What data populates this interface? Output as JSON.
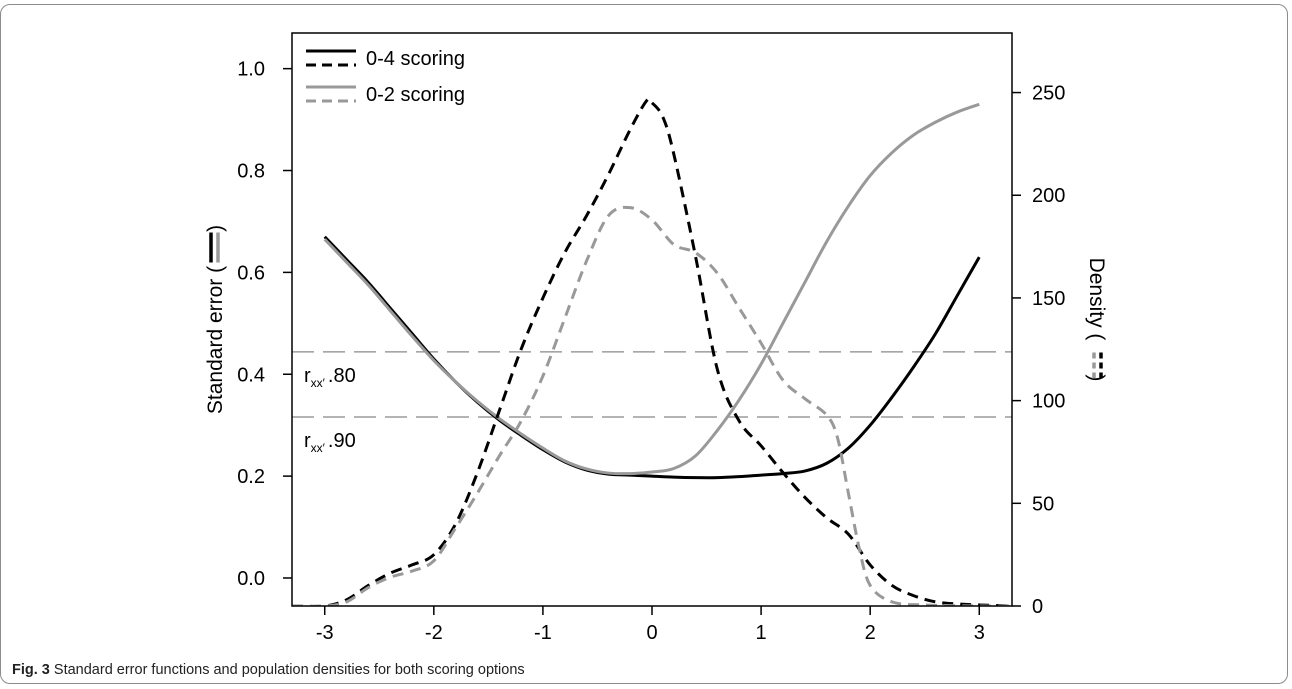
{
  "chart_data": {
    "type": "line",
    "xlim": [
      -3.3,
      3.3
    ],
    "ylim": [
      -0.055,
      1.07
    ],
    "y2lim": [
      0,
      279
    ],
    "x_ticks": [
      -3,
      -2,
      -1,
      0,
      1,
      2,
      3
    ],
    "x_tick_labels": [
      "-3",
      "-2",
      "-1",
      "0",
      "1",
      "2",
      "3"
    ],
    "y_ticks": [
      0.0,
      0.2,
      0.4,
      0.6,
      0.8,
      1.0
    ],
    "y_tick_labels": [
      "0.0",
      "0.2",
      "0.4",
      "0.6",
      "0.8",
      "1.0"
    ],
    "y2_ticks": [
      0,
      50,
      100,
      150,
      200,
      250
    ],
    "y2_tick_labels": [
      "0",
      "50",
      "100",
      "150",
      "200",
      "250"
    ],
    "ylabel_left": "Standard error (",
    "ylabel_right": "Density (",
    "ylabel_close": ")",
    "legend": {
      "placement": "top-left",
      "entries": [
        "0-4 scoring",
        "0-2 scoring"
      ],
      "colors": [
        "#000000",
        "#999999"
      ]
    },
    "reference_lines": [
      {
        "y": 0.444,
        "label_main": "r",
        "label_sub": "xx′",
        "label_value": ".80"
      },
      {
        "y": 0.316,
        "label_main": "r",
        "label_sub": "xx′",
        "label_value": ".90"
      }
    ],
    "series": [
      {
        "name": "0-4 scoring",
        "axis": "left",
        "style": "solid",
        "color": "#000000",
        "x": [
          -3.0,
          -2.8,
          -2.6,
          -2.4,
          -2.2,
          -2.0,
          -1.8,
          -1.6,
          -1.4,
          -1.2,
          -1.0,
          -0.8,
          -0.6,
          -0.4,
          -0.2,
          0.0,
          0.2,
          0.4,
          0.6,
          0.8,
          1.0,
          1.2,
          1.4,
          1.6,
          1.8,
          2.0,
          2.2,
          2.4,
          2.6,
          2.8,
          3.0
        ],
        "y": [
          0.67,
          0.625,
          0.58,
          0.53,
          0.48,
          0.43,
          0.385,
          0.345,
          0.31,
          0.28,
          0.252,
          0.228,
          0.212,
          0.204,
          0.202,
          0.2,
          0.198,
          0.197,
          0.197,
          0.199,
          0.202,
          0.205,
          0.21,
          0.225,
          0.255,
          0.3,
          0.355,
          0.415,
          0.48,
          0.555,
          0.63
        ]
      },
      {
        "name": "0-2 scoring",
        "axis": "left",
        "style": "solid",
        "color": "#999999",
        "x": [
          -3.0,
          -2.8,
          -2.6,
          -2.4,
          -2.2,
          -2.0,
          -1.8,
          -1.6,
          -1.4,
          -1.2,
          -1.0,
          -0.8,
          -0.6,
          -0.4,
          -0.2,
          0.0,
          0.2,
          0.4,
          0.6,
          0.8,
          1.0,
          1.2,
          1.4,
          1.6,
          1.8,
          2.0,
          2.2,
          2.4,
          2.6,
          2.8,
          3.0
        ],
        "y": [
          0.665,
          0.62,
          0.575,
          0.525,
          0.475,
          0.427,
          0.385,
          0.347,
          0.313,
          0.283,
          0.255,
          0.23,
          0.214,
          0.206,
          0.205,
          0.208,
          0.215,
          0.24,
          0.29,
          0.35,
          0.42,
          0.5,
          0.58,
          0.66,
          0.73,
          0.79,
          0.835,
          0.87,
          0.895,
          0.915,
          0.93
        ]
      },
      {
        "name": "0-4 scoring",
        "axis": "right",
        "style": "dashed",
        "color": "#000000",
        "x": [
          -3.3,
          -3.0,
          -2.8,
          -2.6,
          -2.4,
          -2.2,
          -2.0,
          -1.8,
          -1.6,
          -1.4,
          -1.2,
          -1.0,
          -0.8,
          -0.6,
          -0.4,
          -0.2,
          -0.05,
          0.0,
          0.1,
          0.2,
          0.4,
          0.6,
          0.8,
          1.0,
          1.2,
          1.4,
          1.6,
          1.8,
          2.0,
          2.2,
          2.4,
          2.6,
          2.8,
          3.0,
          3.3
        ],
        "y": [
          0,
          0,
          3,
          10,
          16,
          20,
          25,
          40,
          65,
          95,
          125,
          150,
          172,
          190,
          210,
          232,
          246,
          245,
          238,
          220,
          170,
          115,
          90,
          78,
          65,
          53,
          43,
          35,
          20,
          10,
          5,
          2,
          1,
          0.5,
          0
        ]
      },
      {
        "name": "0-2 scoring",
        "axis": "right",
        "style": "dashed",
        "color": "#999999",
        "x": [
          -3.3,
          -3.0,
          -2.8,
          -2.6,
          -2.4,
          -2.2,
          -2.0,
          -1.8,
          -1.6,
          -1.4,
          -1.2,
          -1.0,
          -0.8,
          -0.6,
          -0.4,
          -0.2,
          0.0,
          0.2,
          0.4,
          0.6,
          0.8,
          1.0,
          1.2,
          1.4,
          1.6,
          1.7,
          1.8,
          1.9,
          2.0,
          2.2,
          2.5,
          3.0,
          3.3
        ],
        "y": [
          0,
          0,
          2,
          9,
          14,
          17,
          22,
          38,
          55,
          73,
          90,
          112,
          140,
          168,
          190,
          194,
          188,
          176,
          172,
          162,
          145,
          128,
          110,
          101,
          93,
          82,
          55,
          28,
          10,
          2,
          0.5,
          0,
          0
        ]
      }
    ]
  },
  "caption": {
    "label": "Fig. 3",
    "text": " Standard error functions and population densities for both scoring options"
  },
  "colors": {
    "black_series": "#000000",
    "gray_series": "#999999",
    "reference_line": "#888888",
    "frame": "#8c8c8c"
  }
}
